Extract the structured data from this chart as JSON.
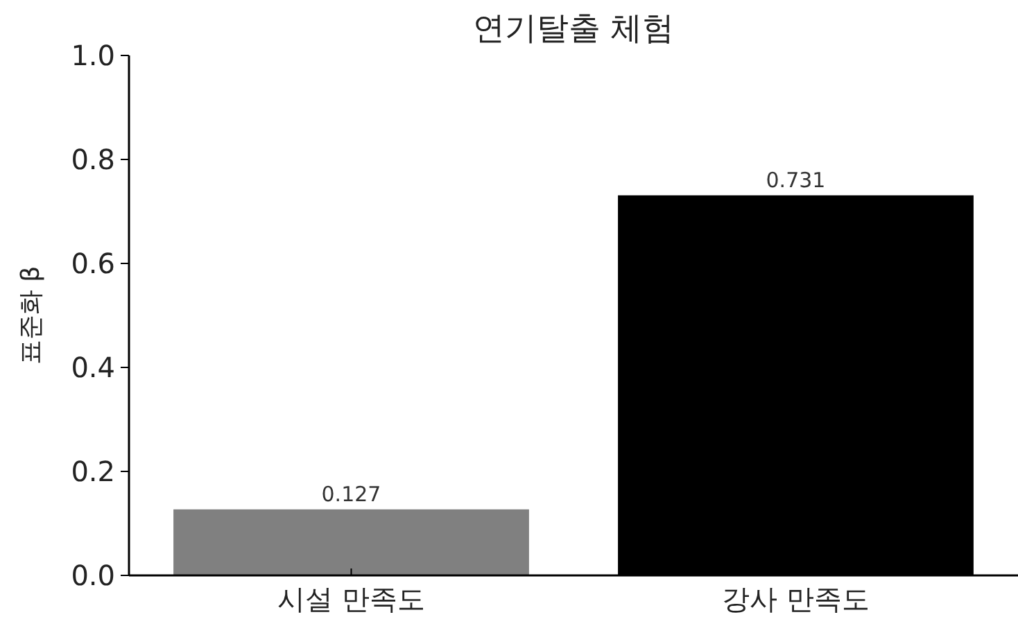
{
  "chart_data": {
    "type": "bar",
    "title": "연기탈출 체험",
    "ylabel": "표준화 β",
    "categories": [
      "시설 만족도",
      "강사 만족도"
    ],
    "values": [
      0.127,
      0.731
    ],
    "colors": [
      "#808080",
      "#000000"
    ],
    "ylim": [
      0,
      1.0
    ],
    "yticks": [
      {
        "value": 0,
        "label": "0.0"
      },
      {
        "value": 0.2,
        "label": "0.2"
      },
      {
        "value": 0.4,
        "label": "0.4"
      },
      {
        "value": 0.6,
        "label": "0.6"
      },
      {
        "value": 0.8,
        "label": "0.8"
      },
      {
        "value": 1.0,
        "label": "1.0"
      }
    ],
    "data_labels": true
  }
}
